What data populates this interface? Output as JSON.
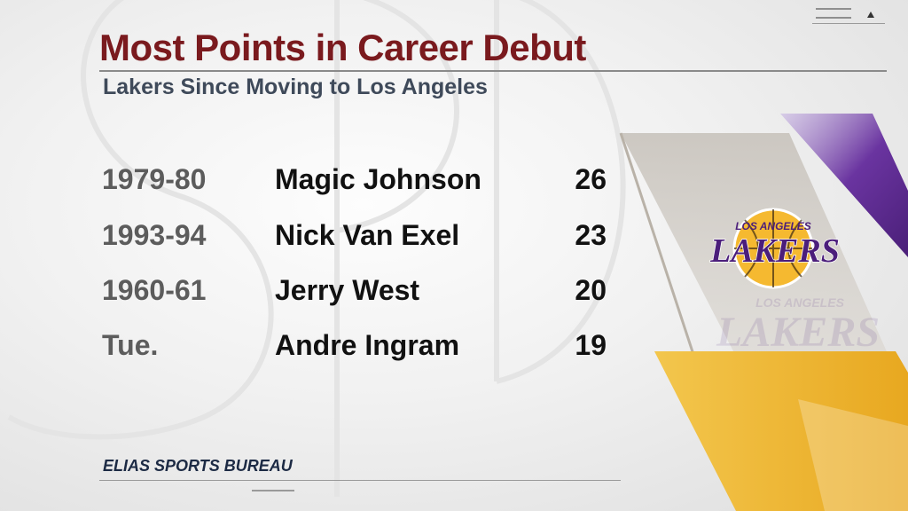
{
  "header": {
    "title": "Most Points in Career Debut",
    "subtitle": "Lakers Since Moving to Los Angeles"
  },
  "table": {
    "rows": [
      {
        "season": "1979-80",
        "player": "Magic Johnson",
        "points": "26"
      },
      {
        "season": "1993-94",
        "player": "Nick Van Exel",
        "points": "23"
      },
      {
        "season": "1960-61",
        "player": "Jerry West",
        "points": "20"
      },
      {
        "season": "Tue.",
        "player": "Andre Ingram",
        "points": "19"
      }
    ]
  },
  "logo": {
    "line1": "LOS ANGELES",
    "line2": "LAKERS"
  },
  "footer": {
    "source": "ELIAS SPORTS BUREAU"
  },
  "colors": {
    "title": "#7a1a1e",
    "subtitle": "#3f4a5a",
    "lakers_purple": "#5b2a86",
    "lakers_gold": "#f5b930"
  },
  "icons": [
    "menu-icon",
    "up-arrow-icon"
  ]
}
